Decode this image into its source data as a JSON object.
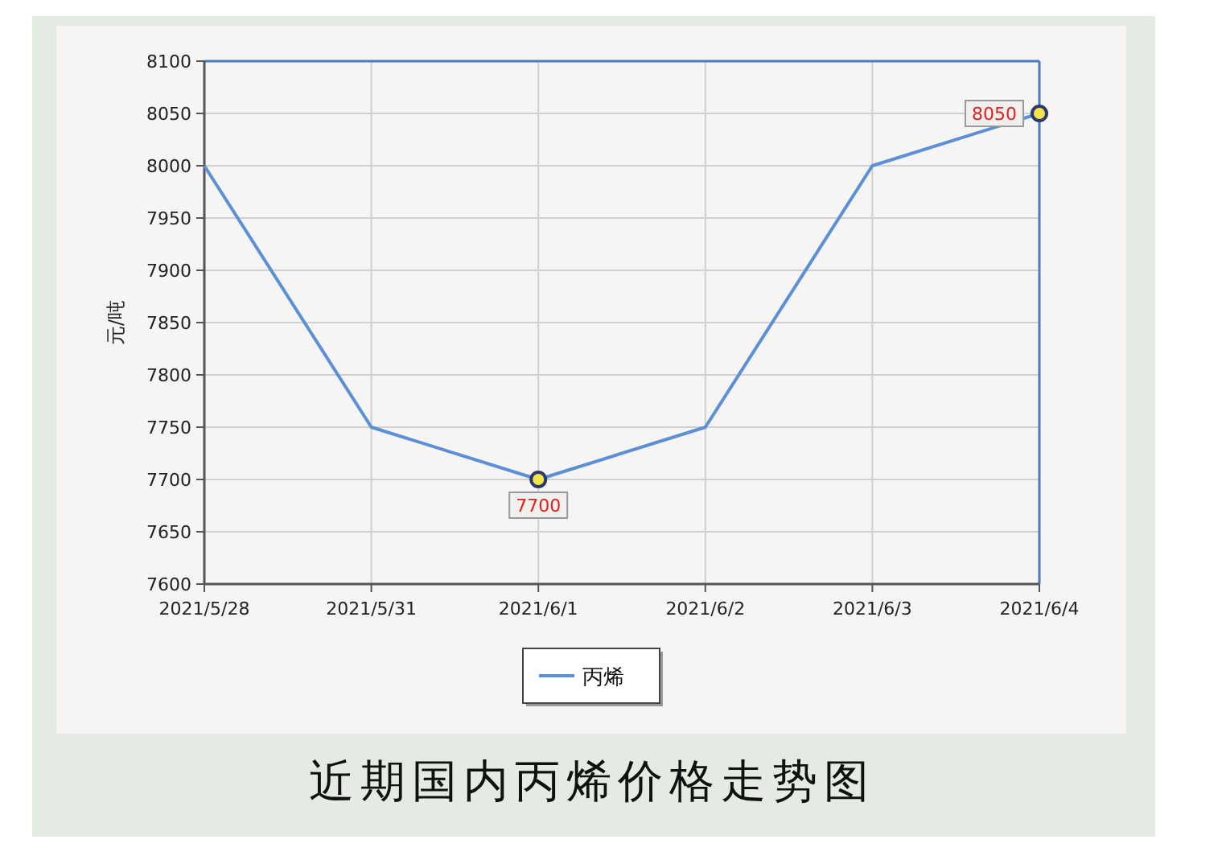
{
  "chart_data": {
    "type": "line",
    "title": "近期国内丙烯价格走势图",
    "ylabel": "元/吨",
    "categories": [
      "2021/5/28",
      "2021/5/31",
      "2021/6/1",
      "2021/6/2",
      "2021/6/3",
      "2021/6/4"
    ],
    "series": [
      {
        "name": "丙烯",
        "color": "#5b8fd6",
        "marker": "none",
        "values": [
          8000,
          7750,
          7700,
          7750,
          8000,
          8050
        ]
      },
      {
        "type": "scatter",
        "color": "#f2e64a",
        "marker": "circle",
        "values": [
          null,
          null,
          7700,
          null,
          null,
          8050
        ],
        "value_labels": [
          null,
          null,
          "7700",
          null,
          null,
          "8050"
        ]
      }
    ],
    "ylim": [
      7600,
      8100
    ],
    "yticks": [
      7600,
      7650,
      7700,
      7750,
      7800,
      7850,
      7900,
      7950,
      8000,
      8050,
      8100
    ],
    "grid": true,
    "legend": "bottom"
  }
}
